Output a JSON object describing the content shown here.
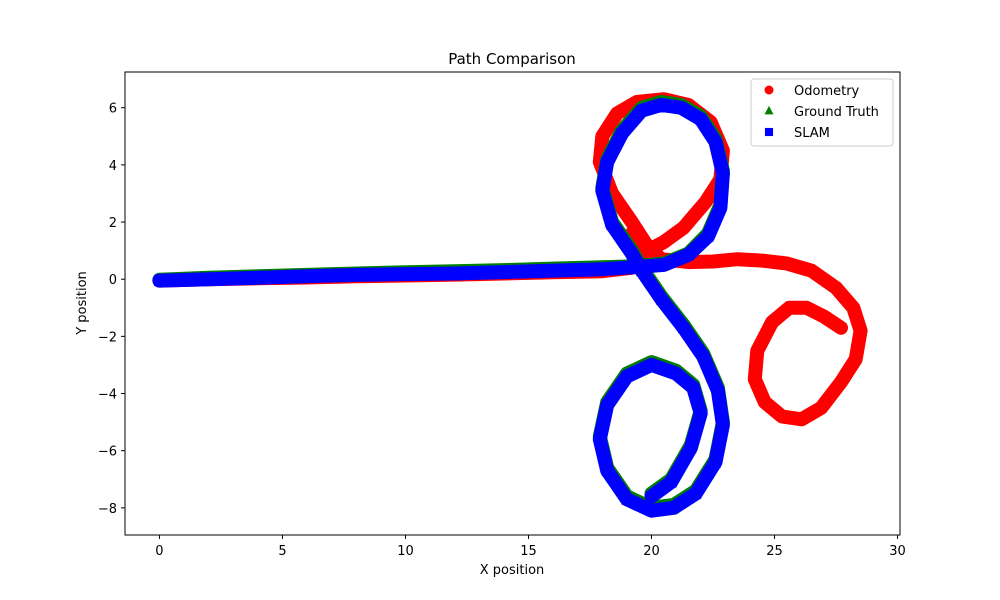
{
  "chart_data": {
    "type": "scatter",
    "title": "Path Comparison",
    "xlabel": "X position",
    "ylabel": "Y position",
    "xlim": [
      -1.4,
      30.1
    ],
    "ylim": [
      -8.95,
      7.25
    ],
    "xticks": [
      0,
      5,
      10,
      15,
      20,
      25,
      30
    ],
    "yticks": [
      -8,
      -6,
      -4,
      -2,
      0,
      2,
      4,
      6
    ],
    "xtick_labels": [
      "0",
      "5",
      "10",
      "15",
      "20",
      "25",
      "30"
    ],
    "ytick_labels": [
      "−8",
      "−6",
      "−4",
      "−2",
      "0",
      "2",
      "4",
      "6"
    ],
    "grid": false,
    "legend_position": "top-right",
    "series": [
      {
        "name": "Odometry",
        "marker": "circle",
        "color": "#ff0000",
        "x": [
          0,
          2,
          4,
          6,
          8,
          10,
          12,
          14,
          16,
          18,
          19.2,
          19.8,
          19.2,
          18.4,
          17.9,
          18.0,
          18.6,
          19.4,
          20.5,
          21.5,
          22.4,
          22.9,
          22.8,
          22.2,
          21.3,
          20.5,
          19.6,
          19.0,
          19.2,
          20.4,
          21.5,
          22.5,
          23.5,
          24.5,
          25.5,
          26.5,
          27.5,
          28.2,
          28.5,
          28.3,
          27.7,
          26.9,
          26.1,
          25.3,
          24.6,
          24.2,
          24.3,
          24.9,
          25.6,
          26.3,
          27.0,
          27.7
        ],
        "y": [
          -0.05,
          0.0,
          0.03,
          0.06,
          0.1,
          0.13,
          0.16,
          0.2,
          0.24,
          0.28,
          0.4,
          1.2,
          2.0,
          3.0,
          4.1,
          5.0,
          5.8,
          6.2,
          6.3,
          6.1,
          5.5,
          4.5,
          3.5,
          2.7,
          1.8,
          1.3,
          0.9,
          1.3,
          1.6,
          0.7,
          0.6,
          0.62,
          0.7,
          0.65,
          0.55,
          0.3,
          -0.3,
          -1.0,
          -1.8,
          -2.8,
          -3.6,
          -4.5,
          -4.9,
          -4.8,
          -4.3,
          -3.5,
          -2.5,
          -1.5,
          -1.0,
          -1.0,
          -1.3,
          -1.7
        ]
      },
      {
        "name": "Ground Truth",
        "marker": "triangle",
        "color": "#008000",
        "x": [
          0,
          2,
          4,
          6,
          8,
          10,
          12,
          14,
          16,
          18,
          19.3,
          20.5,
          21.5,
          22.3,
          22.8,
          22.9,
          22.6,
          22.0,
          21.2,
          20.4,
          19.6,
          18.8,
          18.2,
          18.0,
          18.4,
          19.2,
          19.6,
          20.4,
          21.3,
          22.1,
          22.7,
          22.9,
          22.6,
          21.8,
          20.9,
          20.0,
          19.0,
          18.2,
          17.9,
          18.2,
          19.0,
          20.0,
          21.0,
          21.7,
          22.0,
          21.6,
          20.8,
          20.0
        ],
        "y": [
          -0.02,
          0.05,
          0.1,
          0.15,
          0.2,
          0.24,
          0.28,
          0.32,
          0.37,
          0.42,
          0.45,
          0.55,
          0.9,
          1.6,
          2.6,
          3.8,
          4.9,
          5.7,
          6.1,
          6.2,
          6.0,
          5.2,
          4.2,
          3.2,
          2.0,
          1.0,
          0.4,
          -0.6,
          -1.6,
          -2.6,
          -3.8,
          -5.0,
          -6.3,
          -7.4,
          -7.9,
          -8.0,
          -7.6,
          -6.6,
          -5.5,
          -4.3,
          -3.3,
          -2.9,
          -3.2,
          -3.7,
          -4.6,
          -5.8,
          -7.0,
          -7.5
        ]
      },
      {
        "name": "SLAM",
        "marker": "square",
        "color": "#0000ff",
        "x": [
          0,
          2,
          4,
          6,
          8,
          10,
          12,
          14,
          16,
          18,
          19.3,
          20.5,
          21.5,
          22.3,
          22.8,
          22.9,
          22.6,
          22.0,
          21.2,
          20.4,
          19.6,
          18.8,
          18.2,
          18.0,
          18.4,
          19.2,
          19.6,
          20.4,
          21.3,
          22.1,
          22.7,
          22.9,
          22.6,
          21.8,
          20.9,
          20.0,
          19.0,
          18.2,
          17.9,
          18.2,
          19.0,
          20.0,
          21.0,
          21.7,
          22.0,
          21.6,
          20.8,
          20.0
        ],
        "y": [
          -0.05,
          0.0,
          0.05,
          0.1,
          0.15,
          0.18,
          0.2,
          0.25,
          0.3,
          0.35,
          0.42,
          0.5,
          0.85,
          1.5,
          2.5,
          3.7,
          4.8,
          5.6,
          6.0,
          6.1,
          5.9,
          5.1,
          4.1,
          3.1,
          1.9,
          0.9,
          0.3,
          -0.7,
          -1.7,
          -2.7,
          -3.9,
          -5.1,
          -6.4,
          -7.5,
          -8.0,
          -8.1,
          -7.7,
          -6.7,
          -5.6,
          -4.4,
          -3.4,
          -3.0,
          -3.3,
          -3.8,
          -4.7,
          -5.9,
          -7.1,
          -7.6
        ]
      }
    ]
  }
}
